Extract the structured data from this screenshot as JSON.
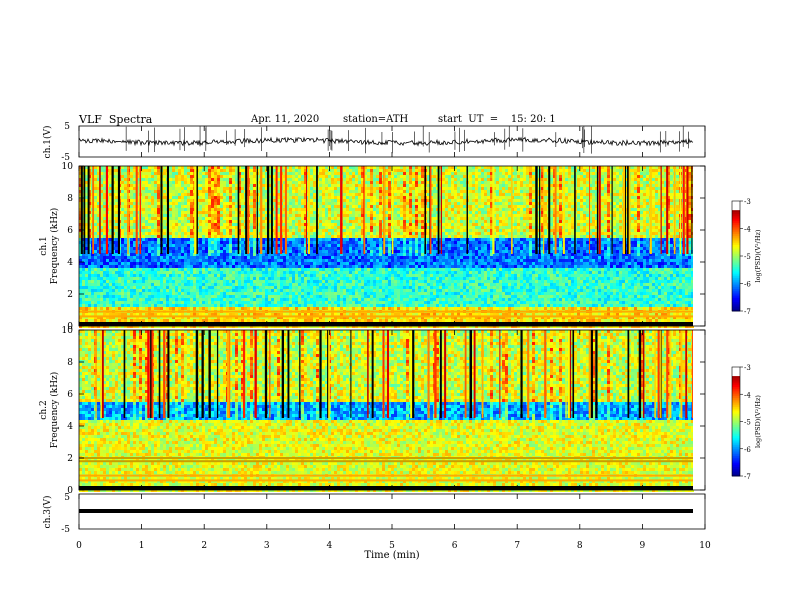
{
  "header": {
    "title": "VLF  Spectra",
    "date": "Apr. 11, 2020",
    "station": "station=ATH",
    "start": "start  UT  =    15: 20: 1"
  },
  "chart_data": [
    {
      "type": "line",
      "panel": "ch1-waveform",
      "ylabel": "ch.1(V)",
      "yticks": [
        "5",
        "-5"
      ],
      "ylim": [
        -5,
        5
      ],
      "xlim": [
        0,
        10
      ],
      "mean_level": 0,
      "noise_amplitude": 0.8
    },
    {
      "type": "heatmap",
      "panel": "ch1-spectrogram",
      "ylabel_channel": "ch.1",
      "ylabel": "Frequency  (kHz)",
      "yticks": [
        "0",
        "2",
        "4",
        "6",
        "8",
        "10"
      ],
      "ylim": [
        0,
        10
      ],
      "xlim": [
        0,
        10
      ],
      "colorbar": {
        "label": "log(PSD)(V²/Hz)",
        "ticks": [
          "-3",
          "-4",
          "-5",
          "-6",
          "-7"
        ],
        "range": [
          -7,
          -3
        ]
      }
    },
    {
      "type": "heatmap",
      "panel": "ch2-spectrogram",
      "ylabel_channel": "ch.2",
      "ylabel": "Frequency  (kHz)",
      "yticks": [
        "0",
        "2",
        "4",
        "6",
        "8",
        "10"
      ],
      "ylim": [
        0,
        10
      ],
      "xlim": [
        0,
        10
      ],
      "colorbar": {
        "label": "log(PSD)(V²/Hz)",
        "ticks": [
          "-3",
          "-4",
          "-5",
          "-6",
          "-7"
        ],
        "range": [
          -7,
          -3
        ]
      }
    },
    {
      "type": "line",
      "panel": "ch3-waveform",
      "ylabel": "ch.3(V)",
      "yticks": [
        "5",
        "-5"
      ],
      "ylim": [
        -5,
        5
      ],
      "xlim": [
        0,
        10
      ],
      "mean_level": -2
    }
  ],
  "xaxis": {
    "label": "Time  (min)",
    "ticks": [
      "0",
      "1",
      "2",
      "3",
      "4",
      "5",
      "6",
      "7",
      "8",
      "9",
      "10"
    ],
    "range": [
      0,
      10
    ]
  }
}
